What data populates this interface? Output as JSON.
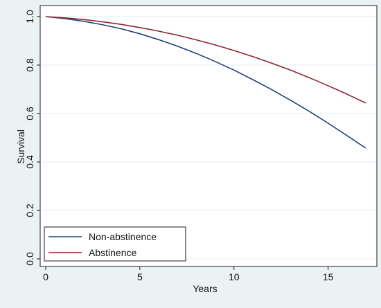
{
  "chart_data": {
    "type": "line",
    "title": "",
    "xlabel": "Years",
    "ylabel": "Survival",
    "xlim": [
      0,
      17
    ],
    "ylim": [
      0,
      1.0
    ],
    "xticks": [
      "0",
      "5",
      "10",
      "15"
    ],
    "xtick_values": [
      0,
      5,
      10,
      15
    ],
    "yticks": [
      "0.0",
      "0.2",
      "0.4",
      "0.6",
      "0.8",
      "1.0"
    ],
    "ytick_values": [
      0,
      0.2,
      0.4,
      0.6,
      0.8,
      1.0
    ],
    "grid": true,
    "legend_position": "bottom-left",
    "series": [
      {
        "name": "Non-abstinence",
        "color": "#1f3f7a",
        "x": [
          0,
          1,
          2,
          3,
          4,
          5,
          6,
          7,
          8,
          9,
          10,
          11,
          12,
          13,
          14,
          15,
          16,
          17
        ],
        "values": [
          1.0,
          0.992,
          0.981,
          0.967,
          0.95,
          0.929,
          0.905,
          0.878,
          0.848,
          0.815,
          0.779,
          0.74,
          0.699,
          0.655,
          0.609,
          0.56,
          0.509,
          0.457
        ]
      },
      {
        "name": "Abstinence",
        "color": "#8b2332",
        "x": [
          0,
          1,
          2,
          3,
          4,
          5,
          6,
          7,
          8,
          9,
          10,
          11,
          12,
          13,
          14,
          15,
          16,
          17
        ],
        "values": [
          1.0,
          0.995,
          0.988,
          0.979,
          0.968,
          0.955,
          0.94,
          0.923,
          0.904,
          0.883,
          0.86,
          0.835,
          0.808,
          0.779,
          0.748,
          0.715,
          0.68,
          0.643
        ]
      }
    ]
  }
}
